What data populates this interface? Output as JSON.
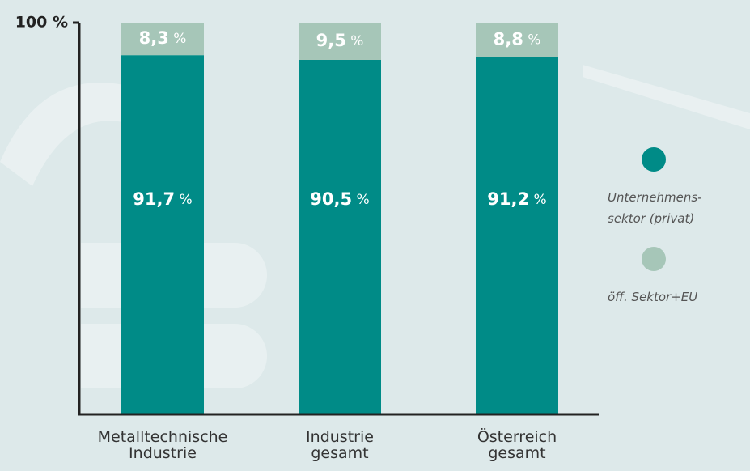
{
  "chart_data": {
    "type": "stacked-bar",
    "categories": [
      "Metalltechnische\nIndustrie",
      "Industrie\ngesamt",
      "Österreich\ngesamt"
    ],
    "series": [
      {
        "name": "Unternehmens-\nsektor (privat)",
        "color": "#008b87",
        "values": [
          91.7,
          90.5,
          91.2
        ],
        "value_labels": [
          "91,7 %",
          "90,5 %",
          "91,2 %"
        ]
      },
      {
        "name": "öff. Sektor+EU",
        "color": "#a6c6b8",
        "values": [
          8.3,
          9.5,
          8.8
        ],
        "value_labels": [
          "8,3 %",
          "9,5 %",
          "8,8 %"
        ]
      }
    ],
    "ylim": [
      0,
      100
    ],
    "yticks": [
      {
        "value": 100,
        "label": "100 %"
      }
    ]
  }
}
